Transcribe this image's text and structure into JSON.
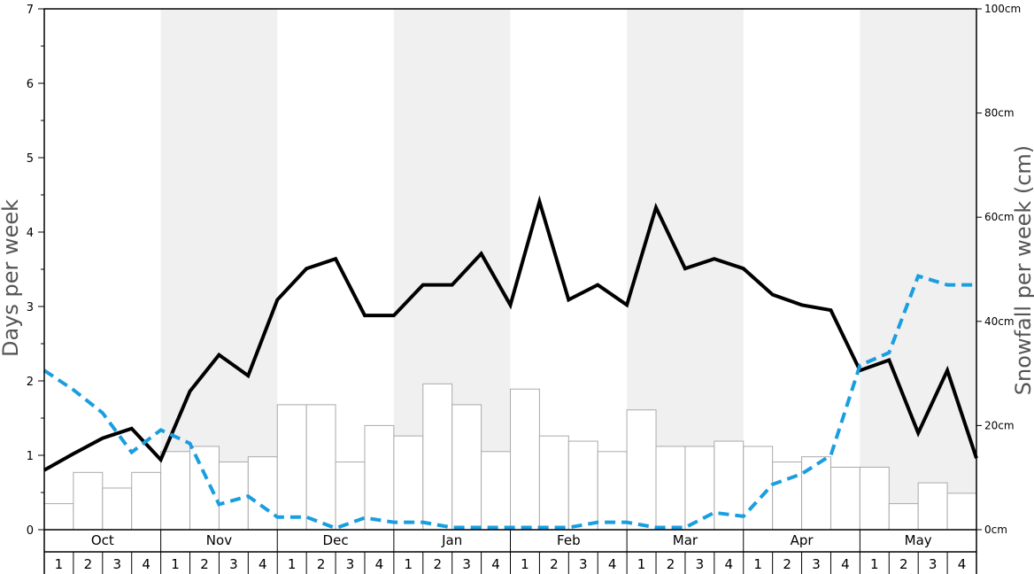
{
  "chart_data": {
    "type": "bar",
    "months": [
      "Oct",
      "Nov",
      "Dec",
      "Jan",
      "Feb",
      "Mar",
      "Apr",
      "May"
    ],
    "weeks": [
      "1",
      "2",
      "3",
      "4"
    ],
    "ylabel_left": "Days per week",
    "ylabel_right": "Snowfall per week (cm)",
    "ylim_left": [
      0,
      7
    ],
    "ylim_right": [
      0,
      100
    ],
    "left_ticks": [
      "0",
      "1",
      "2",
      "3",
      "4",
      "5",
      "6",
      "7"
    ],
    "right_ticks": [
      "0cm",
      "20cm",
      "40cm",
      "60cm",
      "80cm",
      "100cm"
    ],
    "alternating_month_shading": true,
    "series": [
      {
        "kind": "bar",
        "axis": "right",
        "values": [
          5,
          11,
          8,
          11,
          15,
          16,
          13,
          14,
          24,
          24,
          13,
          20,
          18,
          28,
          24,
          15,
          27,
          18,
          17,
          15,
          23,
          16,
          16,
          17,
          16,
          13,
          14,
          12,
          12,
          5,
          9,
          7
        ]
      },
      {
        "kind": "line",
        "style": "solid",
        "color": "#000000",
        "axis": "left",
        "values": [
          0.8,
          1.02,
          1.23,
          1.36,
          0.94,
          1.86,
          2.35,
          2.07,
          3.09,
          3.51,
          3.64,
          2.88,
          2.88,
          3.29,
          3.29,
          3.71,
          3.02,
          4.41,
          3.09,
          3.29,
          3.02,
          4.33,
          3.51,
          3.64,
          3.51,
          3.16,
          3.02,
          2.95,
          2.14,
          2.28,
          1.3,
          2.14,
          0.96
        ]
      },
      {
        "kind": "line",
        "style": "dashed",
        "color": "#1a9ee0",
        "axis": "left",
        "values": [
          2.14,
          1.88,
          1.57,
          1.04,
          1.34,
          1.16,
          0.34,
          0.45,
          0.17,
          0.17,
          0.02,
          0.16,
          0.1,
          0.1,
          0.03,
          0.03,
          0.03,
          0.03,
          0.03,
          0.1,
          0.1,
          0.03,
          0.03,
          0.23,
          0.18,
          0.61,
          0.75,
          1.0,
          2.21,
          2.38,
          3.41,
          3.29,
          3.29
        ]
      }
    ]
  }
}
